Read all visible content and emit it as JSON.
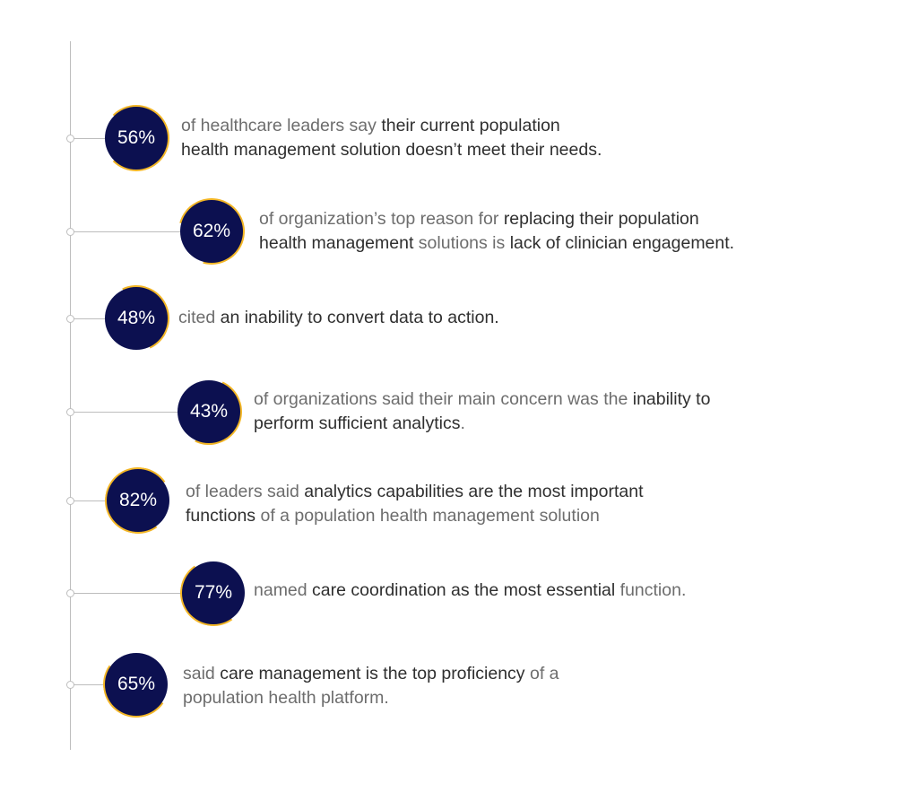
{
  "colors": {
    "circle": "#0c1050",
    "accent": "#f3b625",
    "line": "#bdbdbd",
    "text": "#6d6d6d",
    "highlight": "#2f2f2f"
  },
  "stats": [
    {
      "value": "56%",
      "lines": [
        [
          {
            "t": "of healthcare leaders say ",
            "h": false
          },
          {
            "t": "their current population",
            "h": true
          }
        ],
        [
          {
            "t": "health management solution doesn’t meet their needs.",
            "h": true
          }
        ]
      ]
    },
    {
      "value": "62%",
      "lines": [
        [
          {
            "t": "of organization’s top reason for ",
            "h": false
          },
          {
            "t": "replacing their population",
            "h": true
          }
        ],
        [
          {
            "t": "health management",
            "h": true
          },
          {
            "t": " solutions is ",
            "h": false
          },
          {
            "t": "lack of clinician engagement.",
            "h": true
          }
        ]
      ]
    },
    {
      "value": "48%",
      "lines": [
        [
          {
            "t": "cited ",
            "h": false
          },
          {
            "t": "an inability to convert data to action.",
            "h": true
          }
        ]
      ]
    },
    {
      "value": "43%",
      "lines": [
        [
          {
            "t": "of organizations said their main concern was the ",
            "h": false
          },
          {
            "t": "inability to",
            "h": true
          }
        ],
        [
          {
            "t": "perform sufficient analytics",
            "h": true
          },
          {
            "t": ".",
            "h": false
          }
        ]
      ]
    },
    {
      "value": "82%",
      "lines": [
        [
          {
            "t": "of leaders said ",
            "h": false
          },
          {
            "t": "analytics capabilities are the most important",
            "h": true
          }
        ],
        [
          {
            "t": "functions",
            "h": true
          },
          {
            "t": " of a population health management solution",
            "h": false
          }
        ]
      ]
    },
    {
      "value": "77%",
      "lines": [
        [
          {
            "t": "named ",
            "h": false
          },
          {
            "t": "care coordination as the most essential",
            "h": true
          },
          {
            "t": " function.",
            "h": false
          }
        ]
      ]
    },
    {
      "value": "65%",
      "lines": [
        [
          {
            "t": "said ",
            "h": false
          },
          {
            "t": "care management is the top proficiency",
            "h": true
          },
          {
            "t": " of a",
            "h": false
          }
        ],
        [
          {
            "t": "population health platform.",
            "h": false
          }
        ]
      ]
    }
  ]
}
